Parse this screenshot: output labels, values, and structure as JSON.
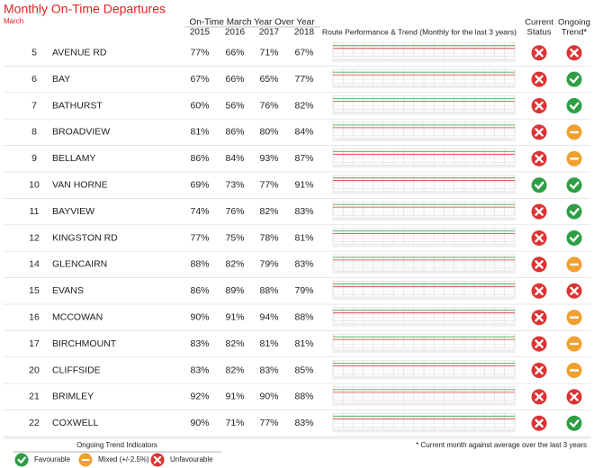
{
  "header": {
    "title": "Monthly On-Time Departures",
    "subtitle": "March"
  },
  "table": {
    "group_header": "On-Time March Year Over Year",
    "years": [
      "2015",
      "2016",
      "2017",
      "2018"
    ],
    "trend_header": "Route Performance & Trend (Monthly for the last 3 years)",
    "status_header": [
      "Current",
      "Status"
    ],
    "ongoing_header": [
      "Ongoing",
      "Trend*"
    ],
    "rows": [
      {
        "route": "5",
        "name": "AVENUE RD",
        "values": [
          "77%",
          "66%",
          "71%",
          "67%"
        ],
        "status": "unfavourable",
        "trend": "unfavourable"
      },
      {
        "route": "6",
        "name": "BAY",
        "values": [
          "67%",
          "66%",
          "65%",
          "77%"
        ],
        "status": "unfavourable",
        "trend": "favourable"
      },
      {
        "route": "7",
        "name": "BATHURST",
        "values": [
          "60%",
          "56%",
          "76%",
          "82%"
        ],
        "status": "unfavourable",
        "trend": "favourable"
      },
      {
        "route": "8",
        "name": "BROADVIEW",
        "values": [
          "81%",
          "86%",
          "80%",
          "84%"
        ],
        "status": "unfavourable",
        "trend": "mixed"
      },
      {
        "route": "9",
        "name": "BELLAMY",
        "values": [
          "86%",
          "84%",
          "93%",
          "87%"
        ],
        "status": "unfavourable",
        "trend": "mixed"
      },
      {
        "route": "10",
        "name": "VAN HORNE",
        "values": [
          "69%",
          "73%",
          "77%",
          "91%"
        ],
        "status": "favourable",
        "trend": "favourable"
      },
      {
        "route": "11",
        "name": "BAYVIEW",
        "values": [
          "74%",
          "76%",
          "82%",
          "83%"
        ],
        "status": "unfavourable",
        "trend": "favourable"
      },
      {
        "route": "12",
        "name": "KINGSTON RD",
        "values": [
          "77%",
          "75%",
          "78%",
          "81%"
        ],
        "status": "unfavourable",
        "trend": "favourable"
      },
      {
        "route": "14",
        "name": "GLENCAIRN",
        "values": [
          "88%",
          "82%",
          "79%",
          "83%"
        ],
        "status": "unfavourable",
        "trend": "mixed"
      },
      {
        "route": "15",
        "name": "EVANS",
        "values": [
          "86%",
          "89%",
          "88%",
          "79%"
        ],
        "status": "unfavourable",
        "trend": "unfavourable"
      },
      {
        "route": "16",
        "name": "MCCOWAN",
        "values": [
          "90%",
          "91%",
          "94%",
          "88%"
        ],
        "status": "unfavourable",
        "trend": "mixed"
      },
      {
        "route": "17",
        "name": "BIRCHMOUNT",
        "values": [
          "83%",
          "82%",
          "81%",
          "81%"
        ],
        "status": "unfavourable",
        "trend": "mixed"
      },
      {
        "route": "20",
        "name": "CLIFFSIDE",
        "values": [
          "83%",
          "82%",
          "83%",
          "85%"
        ],
        "status": "unfavourable",
        "trend": "mixed"
      },
      {
        "route": "21",
        "name": "BRIMLEY",
        "values": [
          "92%",
          "91%",
          "90%",
          "88%"
        ],
        "status": "unfavourable",
        "trend": "unfavourable"
      },
      {
        "route": "22",
        "name": "COXWELL",
        "values": [
          "90%",
          "71%",
          "77%",
          "83%"
        ],
        "status": "unfavourable",
        "trend": "favourable"
      }
    ]
  },
  "indicator_colors": {
    "favourable": "#2e9e45",
    "mixed": "#f0a030",
    "unfavourable": "#dd3333"
  },
  "legend": {
    "title": "Ongoing Trend Indicators",
    "items": [
      {
        "label": "Favourable",
        "kind": "favourable"
      },
      {
        "label": "Mixed (+/-2.5%)",
        "kind": "mixed"
      },
      {
        "label": "Unfavourable",
        "kind": "unfavourable"
      }
    ]
  },
  "footnote": "* Current month against average over the last 3 years"
}
